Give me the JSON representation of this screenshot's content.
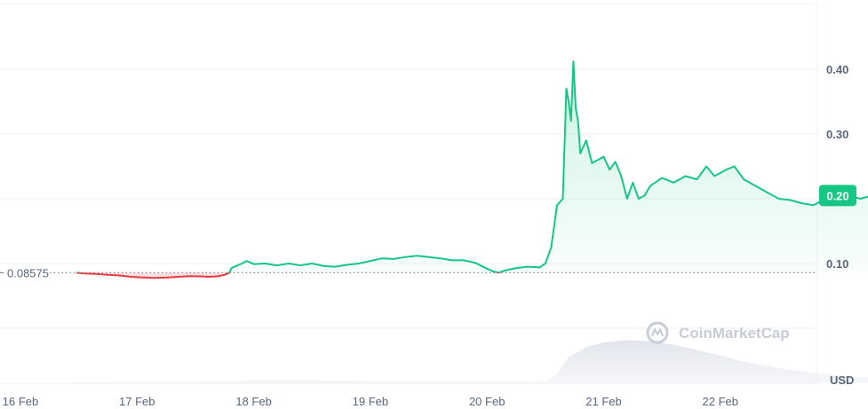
{
  "chart_data": {
    "type": "line",
    "currency": "USD",
    "reference_value": 0.08575,
    "reference_label": "0.08575",
    "last_value": 0.205,
    "last_label": "0.20",
    "yticks": [
      {
        "value": 0.1,
        "label": "0.10"
      },
      {
        "value": 0.2,
        "label": "0.20"
      },
      {
        "value": 0.3,
        "label": "0.30"
      },
      {
        "value": 0.4,
        "label": "0.40"
      }
    ],
    "xticks": [
      {
        "day": 16,
        "label": "16 Feb"
      },
      {
        "day": 17,
        "label": "17 Feb"
      },
      {
        "day": 18,
        "label": "18 Feb"
      },
      {
        "day": 19,
        "label": "19 Feb"
      },
      {
        "day": 20,
        "label": "20 Feb"
      },
      {
        "day": 21,
        "label": "21 Feb"
      },
      {
        "day": 22,
        "label": "22 Feb"
      }
    ],
    "price": [
      [
        16.48,
        0.0857
      ],
      [
        16.55,
        0.0845
      ],
      [
        16.65,
        0.0838
      ],
      [
        16.75,
        0.0825
      ],
      [
        16.85,
        0.0815
      ],
      [
        16.95,
        0.0795
      ],
      [
        17.05,
        0.0785
      ],
      [
        17.15,
        0.0778
      ],
      [
        17.25,
        0.0782
      ],
      [
        17.35,
        0.0795
      ],
      [
        17.45,
        0.0805
      ],
      [
        17.55,
        0.0802
      ],
      [
        17.62,
        0.0795
      ],
      [
        17.7,
        0.0805
      ],
      [
        17.75,
        0.0825
      ],
      [
        17.79,
        0.0857
      ],
      [
        17.81,
        0.093
      ],
      [
        17.86,
        0.097
      ],
      [
        17.9,
        0.1
      ],
      [
        17.94,
        0.104
      ],
      [
        18.0,
        0.099
      ],
      [
        18.1,
        0.1
      ],
      [
        18.2,
        0.097
      ],
      [
        18.3,
        0.1
      ],
      [
        18.4,
        0.097
      ],
      [
        18.5,
        0.1
      ],
      [
        18.6,
        0.096
      ],
      [
        18.7,
        0.095
      ],
      [
        18.8,
        0.098
      ],
      [
        18.9,
        0.1
      ],
      [
        19.0,
        0.104
      ],
      [
        19.1,
        0.108
      ],
      [
        19.2,
        0.107
      ],
      [
        19.3,
        0.11
      ],
      [
        19.4,
        0.112
      ],
      [
        19.5,
        0.11
      ],
      [
        19.6,
        0.108
      ],
      [
        19.7,
        0.105
      ],
      [
        19.8,
        0.105
      ],
      [
        19.9,
        0.101
      ],
      [
        20.0,
        0.092
      ],
      [
        20.05,
        0.088
      ],
      [
        20.1,
        0.0857
      ],
      [
        20.15,
        0.089
      ],
      [
        20.25,
        0.093
      ],
      [
        20.35,
        0.095
      ],
      [
        20.45,
        0.094
      ],
      [
        20.5,
        0.1
      ],
      [
        20.55,
        0.125
      ],
      [
        20.6,
        0.19
      ],
      [
        20.65,
        0.2
      ],
      [
        20.68,
        0.37
      ],
      [
        20.7,
        0.35
      ],
      [
        20.72,
        0.32
      ],
      [
        20.74,
        0.412
      ],
      [
        20.76,
        0.34
      ],
      [
        20.78,
        0.32
      ],
      [
        20.8,
        0.27
      ],
      [
        20.85,
        0.29
      ],
      [
        20.9,
        0.255
      ],
      [
        21.0,
        0.265
      ],
      [
        21.05,
        0.245
      ],
      [
        21.1,
        0.257
      ],
      [
        21.15,
        0.235
      ],
      [
        21.2,
        0.2
      ],
      [
        21.25,
        0.225
      ],
      [
        21.3,
        0.2
      ],
      [
        21.35,
        0.205
      ],
      [
        21.4,
        0.22
      ],
      [
        21.5,
        0.232
      ],
      [
        21.6,
        0.225
      ],
      [
        21.7,
        0.235
      ],
      [
        21.8,
        0.23
      ],
      [
        21.88,
        0.25
      ],
      [
        21.95,
        0.235
      ],
      [
        22.05,
        0.245
      ],
      [
        22.12,
        0.25
      ],
      [
        22.2,
        0.23
      ],
      [
        22.3,
        0.22
      ],
      [
        22.4,
        0.21
      ],
      [
        22.5,
        0.2
      ],
      [
        22.6,
        0.198
      ],
      [
        22.7,
        0.193
      ],
      [
        22.8,
        0.19
      ],
      [
        22.9,
        0.2
      ],
      [
        23.0,
        0.21
      ],
      [
        23.1,
        0.205
      ],
      [
        23.2,
        0.2
      ],
      [
        23.3,
        0.205
      ],
      [
        23.42,
        0.204
      ]
    ],
    "volume": [
      [
        16.48,
        0.02
      ],
      [
        17.0,
        0.03
      ],
      [
        17.5,
        0.04
      ],
      [
        17.8,
        0.05
      ],
      [
        18.0,
        0.06
      ],
      [
        18.5,
        0.06
      ],
      [
        19.0,
        0.05
      ],
      [
        19.5,
        0.05
      ],
      [
        20.0,
        0.04
      ],
      [
        20.5,
        0.05
      ],
      [
        20.6,
        0.2
      ],
      [
        20.7,
        0.55
      ],
      [
        20.85,
        0.75
      ],
      [
        21.0,
        0.85
      ],
      [
        21.2,
        0.9
      ],
      [
        21.4,
        0.88
      ],
      [
        21.6,
        0.8
      ],
      [
        21.8,
        0.7
      ],
      [
        22.0,
        0.58
      ],
      [
        22.2,
        0.45
      ],
      [
        22.4,
        0.36
      ],
      [
        22.6,
        0.28
      ],
      [
        22.8,
        0.22
      ],
      [
        23.0,
        0.17
      ],
      [
        23.2,
        0.13
      ],
      [
        23.42,
        0.11
      ]
    ],
    "watermark": "CoinMarketCap"
  }
}
